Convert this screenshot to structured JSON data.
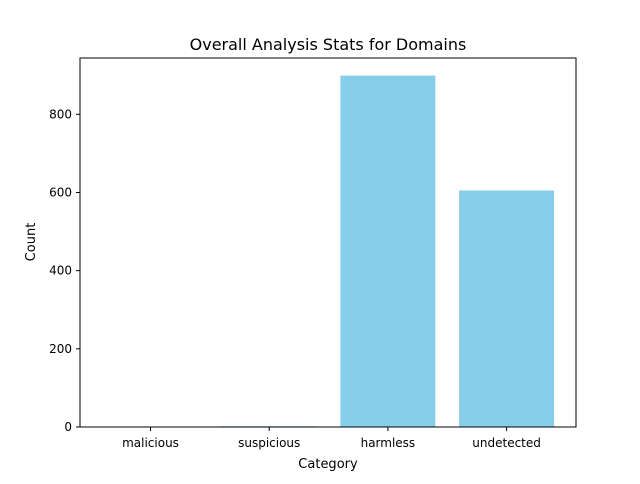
{
  "chart_data": {
    "type": "bar",
    "title": "Overall Analysis Stats for Domains",
    "xlabel": "Category",
    "ylabel": "Count",
    "categories": [
      "malicious",
      "suspicious",
      "harmless",
      "undetected"
    ],
    "values": [
      0,
      2,
      899,
      605
    ],
    "ylim": [
      0,
      944
    ],
    "yticks": [
      0,
      200,
      400,
      600,
      800
    ],
    "bar_color": "#87ceeb",
    "grid": false,
    "legend": "none"
  }
}
